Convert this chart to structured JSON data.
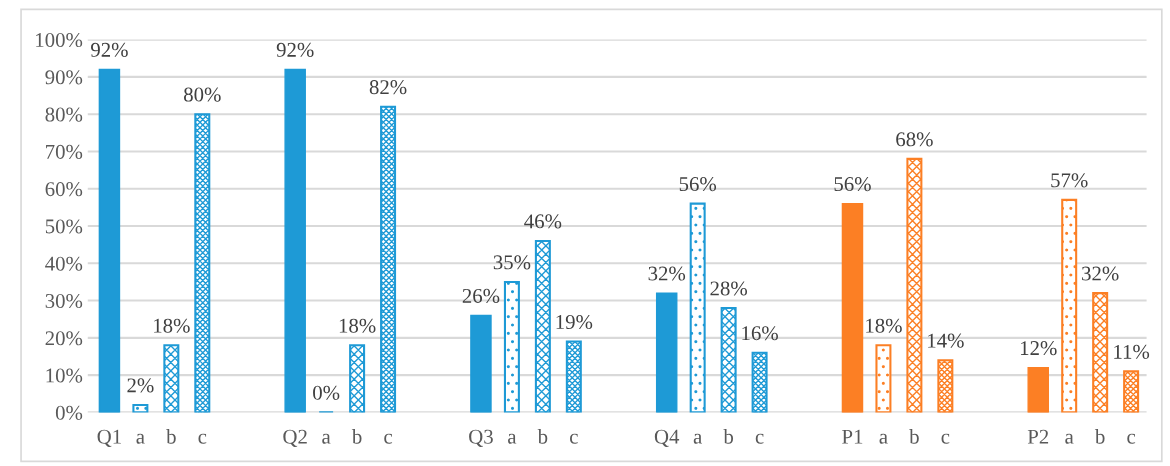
{
  "chart_data": {
    "type": "bar",
    "categories": [
      "Q1",
      "a",
      "b",
      "c",
      null,
      null,
      "Q2",
      "a",
      "b",
      "c",
      null,
      null,
      "Q3",
      "a",
      "b",
      "c",
      null,
      null,
      "Q4",
      "a",
      "b",
      "c",
      null,
      null,
      "P1",
      "a",
      "b",
      "c",
      null,
      null,
      "P2",
      "a",
      "b",
      "c"
    ],
    "values": [
      92,
      2,
      18,
      80,
      null,
      null,
      92,
      0,
      18,
      82,
      null,
      null,
      26,
      35,
      46,
      19,
      null,
      null,
      32,
      56,
      28,
      16,
      null,
      null,
      56,
      18,
      68,
      14,
      null,
      null,
      12,
      57,
      32,
      11
    ],
    "colors": [
      "#1e9ad6",
      "#1e9ad6",
      "#1e9ad6",
      "#1e9ad6",
      null,
      null,
      "#1e9ad6",
      "#1e9ad6",
      "#1e9ad6",
      "#1e9ad6",
      null,
      null,
      "#1e9ad6",
      "#1e9ad6",
      "#1e9ad6",
      "#1e9ad6",
      null,
      null,
      "#1e9ad6",
      "#1e9ad6",
      "#1e9ad6",
      "#1e9ad6",
      null,
      null,
      "#fc7f24",
      "#fc7f24",
      "#fc7f24",
      "#fc7f24",
      null,
      null,
      "#fc7f24",
      "#fc7f24",
      "#fc7f24",
      "#fc7f24"
    ],
    "ylim": [
      0,
      100
    ],
    "yticks": [
      {
        "value": 0,
        "label": "0%"
      },
      {
        "value": 10,
        "label": "10%"
      },
      {
        "value": 20,
        "label": "20%"
      },
      {
        "value": 30,
        "label": "30%"
      },
      {
        "value": 40,
        "label": "40%"
      },
      {
        "value": 50,
        "label": "50%"
      },
      {
        "value": 60,
        "label": "60%"
      },
      {
        "value": 70,
        "label": "70%"
      },
      {
        "value": 80,
        "label": "80%"
      },
      {
        "value": 90,
        "label": "90%"
      },
      {
        "value": 100,
        "label": "100%"
      }
    ],
    "grid": "y",
    "value_labels": [
      "92%",
      "2%",
      "18%",
      "80%",
      null,
      null,
      "92%",
      "0%",
      "18%",
      "82%",
      null,
      null,
      "26%",
      "35%",
      "46%",
      "19%",
      null,
      null,
      "32%",
      "56%",
      "28%",
      "16%",
      null,
      null,
      "56%",
      "18%",
      "68%",
      "14%",
      null,
      null,
      "12%",
      "57%",
      "32%",
      "11%"
    ]
  }
}
